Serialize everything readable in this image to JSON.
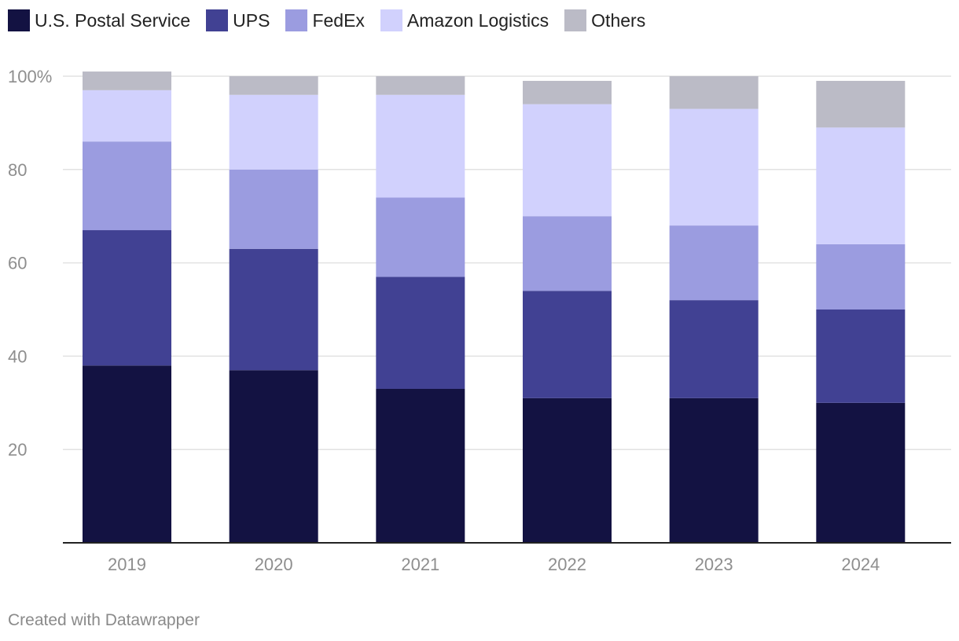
{
  "chart_data": {
    "type": "bar",
    "stacked": true,
    "categories": [
      "2019",
      "2020",
      "2021",
      "2022",
      "2023",
      "2024"
    ],
    "series": [
      {
        "name": "U.S. Postal Service",
        "color": "#131242",
        "values": [
          38,
          37,
          33,
          31,
          31,
          30
        ]
      },
      {
        "name": "UPS",
        "color": "#414193",
        "values": [
          29,
          26,
          24,
          23,
          21,
          20
        ]
      },
      {
        "name": "FedEx",
        "color": "#9b9ce0",
        "values": [
          19,
          17,
          17,
          16,
          16,
          14
        ]
      },
      {
        "name": "Amazon Logistics",
        "color": "#d1d1fd",
        "values": [
          11,
          16,
          22,
          24,
          25,
          25
        ]
      },
      {
        "name": "Others",
        "color": "#bbbbc6",
        "values": [
          4,
          4,
          4,
          5,
          7,
          10
        ]
      }
    ],
    "yticks": [
      20,
      40,
      60,
      80,
      100
    ],
    "ytick_labels": [
      "20",
      "40",
      "60",
      "80",
      "100%"
    ],
    "ylim": [
      0,
      100
    ],
    "title": "",
    "xlabel": "",
    "ylabel": ""
  },
  "legend": {
    "items": [
      {
        "label": "U.S. Postal Service",
        "color": "#131242"
      },
      {
        "label": "UPS",
        "color": "#414193"
      },
      {
        "label": "FedEx",
        "color": "#9b9ce0"
      },
      {
        "label": "Amazon Logistics",
        "color": "#d1d1fd"
      },
      {
        "label": "Others",
        "color": "#bbbbc6"
      }
    ]
  },
  "footer": {
    "credit": "Created with Datawrapper"
  }
}
